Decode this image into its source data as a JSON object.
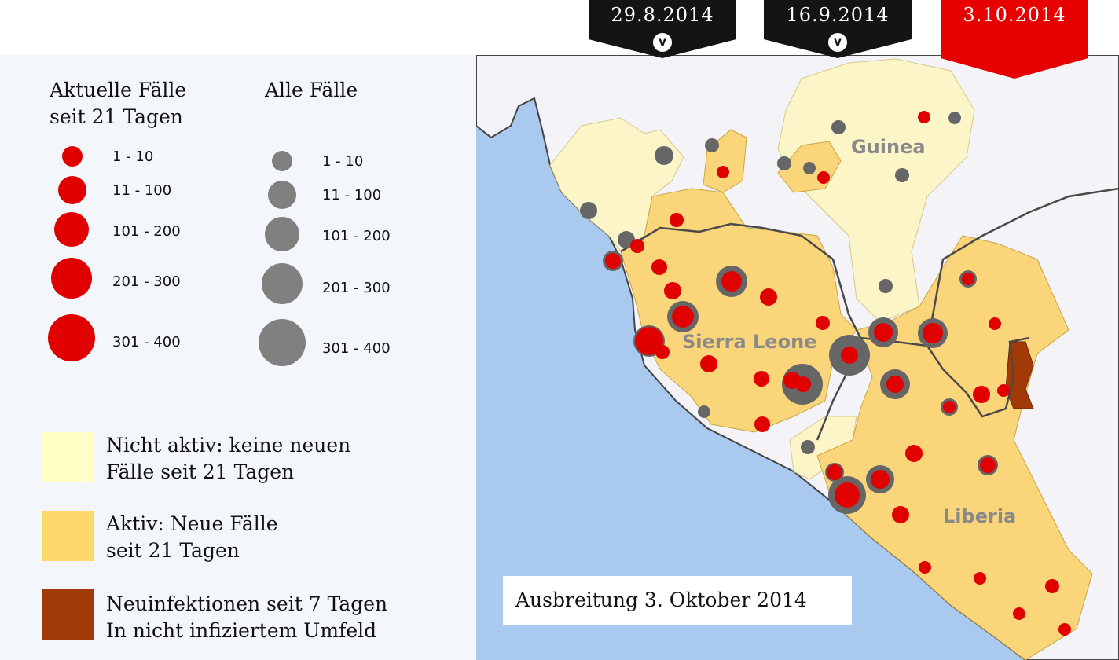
{
  "timeline": {
    "tabs": [
      {
        "date": "29.8.2014",
        "active": false
      },
      {
        "date": "16.9.2014",
        "active": false
      },
      {
        "date": "3.10.2014",
        "active": true
      }
    ],
    "colors": {
      "inactive": "#141414",
      "active": "#e60000"
    },
    "chevron_icon": "chevron-down-icon"
  },
  "legend": {
    "current_cases": {
      "heading": "Aktuelle Fälle\nseit 21 Tagen",
      "color": "#e00000",
      "ranges": [
        "1 - 10",
        "11 - 100",
        "101 - 200",
        "201 - 300",
        "301 - 400"
      ]
    },
    "all_cases": {
      "heading": "Alle Fälle",
      "color": "#808080",
      "ranges": [
        "1 - 10",
        "11 - 100",
        "101 - 200",
        "201 - 300",
        "301 - 400"
      ]
    },
    "categories": [
      {
        "label": "Nicht aktiv: keine neuen\nFälle seit 21 Tagen",
        "color": "#ffffc6"
      },
      {
        "label": "Aktiv: Neue Fälle\nseit 21 Tagen",
        "color": "#fcd86a"
      },
      {
        "label": "Neuinfektionen seit 7 Tagen\nIn nicht infiziertem Umfeld",
        "color": "#a13a06"
      }
    ]
  },
  "map": {
    "countries": [
      "Guinea",
      "Sierra Leone",
      "Liberia"
    ],
    "caption": "Ausbreitung 3. Oktober 2014",
    "colors": {
      "sea": "#a9c9ee",
      "land": "#f3f3f8",
      "not_active": "#fbf5c8",
      "active": "#fbd57a",
      "new_infection": "#a13a06",
      "border": "#4a4a4a"
    }
  }
}
